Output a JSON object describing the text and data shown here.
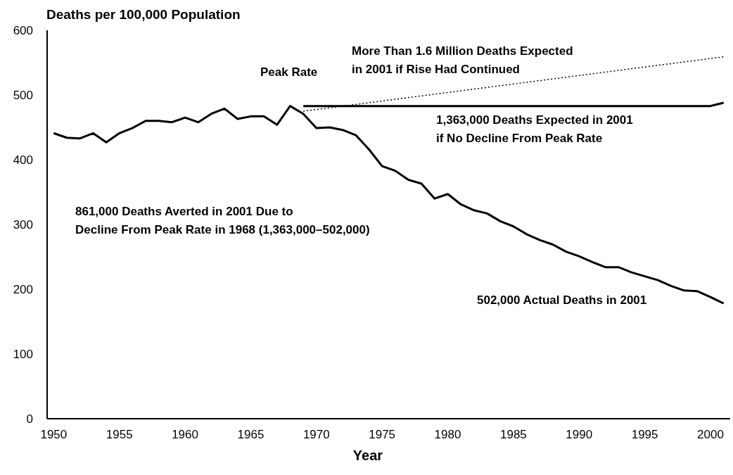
{
  "chart_data": {
    "type": "line",
    "ylabel": "Deaths per 100,000 Population",
    "xlabel": "Year",
    "x": [
      1950,
      1951,
      1952,
      1953,
      1954,
      1955,
      1956,
      1957,
      1958,
      1959,
      1960,
      1961,
      1962,
      1963,
      1964,
      1965,
      1966,
      1967,
      1968,
      1969,
      1970,
      1971,
      1972,
      1973,
      1974,
      1975,
      1976,
      1977,
      1978,
      1979,
      1980,
      1981,
      1982,
      1983,
      1984,
      1985,
      1986,
      1987,
      1988,
      1989,
      1990,
      1991,
      1992,
      1993,
      1994,
      1995,
      1996,
      1997,
      1998,
      1999,
      2000,
      2001
    ],
    "series": [
      {
        "color": "#000000",
        "line_style": "solid",
        "values": [
          441,
          434,
          433,
          441,
          427,
          441,
          449,
          460,
          460,
          458,
          465,
          458,
          471,
          479,
          463,
          467,
          467,
          454,
          483,
          471,
          449,
          450,
          446,
          438,
          416,
          390,
          383,
          369,
          363,
          340,
          347,
          331,
          322,
          317,
          305,
          297,
          285,
          276,
          269,
          258,
          251,
          242,
          234,
          234,
          226,
          220,
          214,
          205,
          198,
          197,
          188,
          178
        ]
      },
      {
        "color": "#000000",
        "line_style": "solid",
        "x": [
          1969,
          2000,
          2001
        ],
        "values": [
          483,
          483,
          488
        ]
      },
      {
        "color": "#000000",
        "line_style": "dotted",
        "x": [
          1969,
          2001
        ],
        "values": [
          475,
          559
        ]
      }
    ],
    "xlim": [
      1949.5,
      2001.5
    ],
    "xticks": [
      1950,
      1955,
      1960,
      1965,
      1970,
      1975,
      1980,
      1985,
      1990,
      1995,
      2000
    ],
    "ylim": [
      0,
      600
    ],
    "yticks": [
      0,
      100,
      200,
      300,
      400,
      500,
      600
    ],
    "marker": "none",
    "annotations": [
      "Peak Rate",
      "More Than 1.6 Million Deaths Expected\nin 2001 if Rise Had Continued",
      "1,363,000 Deaths Expected in 2001\nif No Decline From Peak Rate",
      "861,000 Deaths Averted in 2001 Due to\nDecline From Peak Rate in 1968 (1,363,000–502,000)",
      "502,000 Actual Deaths in 2001"
    ]
  }
}
